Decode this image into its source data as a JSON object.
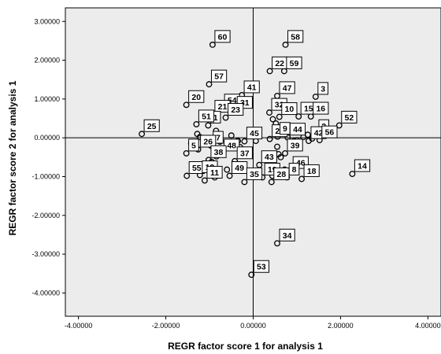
{
  "chart_data": {
    "type": "scatter",
    "title": "",
    "xlabel": "REGR factor score   1 for analysis 1",
    "ylabel": "REGR factor score   2 for analysis 1",
    "xlim": [
      -4.3,
      4.3
    ],
    "ylim": [
      -4.6,
      3.35
    ],
    "xticks": [
      -4,
      -2,
      0,
      2,
      4
    ],
    "yticks": [
      -4,
      -3,
      -2,
      -1,
      0,
      1,
      2,
      3
    ],
    "xtick_labels": [
      "-4.00000",
      "-2.00000",
      "0.00000",
      "2.00000",
      "4.00000"
    ],
    "ytick_labels": [
      "-4.00000",
      "-3.00000",
      "-2.00000",
      "-1.00000",
      "0.00000",
      "1.00000",
      "2.00000",
      "3.00000"
    ],
    "reference_lines": {
      "x": 0,
      "y": 0
    },
    "background": "#ececec",
    "point_color": "#000000",
    "points": [
      {
        "label": "60",
        "x": -0.93,
        "y": 2.4
      },
      {
        "label": "58",
        "x": 0.74,
        "y": 2.4
      },
      {
        "label": "22",
        "x": 0.38,
        "y": 1.72
      },
      {
        "label": "59",
        "x": 0.71,
        "y": 1.72
      },
      {
        "label": "57",
        "x": -1.01,
        "y": 1.38
      },
      {
        "label": "41",
        "x": -0.26,
        "y": 1.1
      },
      {
        "label": "47",
        "x": 0.55,
        "y": 1.08
      },
      {
        "label": "3",
        "x": 1.43,
        "y": 1.06
      },
      {
        "label": "20",
        "x": -1.53,
        "y": 0.85
      },
      {
        "label": "54",
        "x": -0.71,
        "y": 0.76
      },
      {
        "label": "32",
        "x": 0.37,
        "y": 0.65
      },
      {
        "label": "21",
        "x": -0.93,
        "y": 0.6
      },
      {
        "label": "31",
        "x": -0.42,
        "y": 0.7
      },
      {
        "label": "10",
        "x": 0.6,
        "y": 0.54
      },
      {
        "label": "15",
        "x": 1.04,
        "y": 0.55
      },
      {
        "label": "16",
        "x": 1.32,
        "y": 0.55
      },
      {
        "label": "23",
        "x": -0.63,
        "y": 0.52
      },
      {
        "label": "52",
        "x": 1.97,
        "y": 0.32
      },
      {
        "label": "1",
        "x": -1.03,
        "y": 0.32
      },
      {
        "label": "51",
        "x": -1.3,
        "y": 0.35
      },
      {
        "label": "2",
        "x": 1.45,
        "y": 0.1
      },
      {
        "label": "25",
        "x": -2.55,
        "y": 0.1
      },
      {
        "label": "24",
        "x": 0.38,
        "y": -0.03
      },
      {
        "label": "9",
        "x": 0.56,
        "y": 0.03
      },
      {
        "label": "44",
        "x": 0.79,
        "y": 0.01
      },
      {
        "label": "45",
        "x": -0.2,
        "y": -0.09
      },
      {
        "label": "42",
        "x": 1.27,
        "y": -0.08
      },
      {
        "label": "56",
        "x": 1.52,
        "y": -0.06
      },
      {
        "label": "7",
        "x": -0.97,
        "y": -0.2
      },
      {
        "label": "26",
        "x": -1.26,
        "y": -0.3
      },
      {
        "label": "5",
        "x": -1.53,
        "y": -0.4
      },
      {
        "label": "48",
        "x": -0.72,
        "y": -0.4
      },
      {
        "label": "39",
        "x": 0.73,
        "y": -0.4
      },
      {
        "label": "38",
        "x": -1.02,
        "y": -0.57
      },
      {
        "label": "37",
        "x": -0.42,
        "y": -0.6
      },
      {
        "label": "43",
        "x": 0.14,
        "y": -0.7
      },
      {
        "label": "14",
        "x": 2.27,
        "y": -0.93
      },
      {
        "label": "46",
        "x": 0.86,
        "y": -0.85
      },
      {
        "label": "55",
        "x": -1.52,
        "y": -0.98
      },
      {
        "label": "12",
        "x": -1.22,
        "y": -0.96
      },
      {
        "label": "49",
        "x": -0.54,
        "y": -0.98
      },
      {
        "label": "19",
        "x": 0.21,
        "y": -1.02
      },
      {
        "label": "8",
        "x": 0.77,
        "y": -1.02
      },
      {
        "label": "18",
        "x": 1.11,
        "y": -1.06
      },
      {
        "label": "11",
        "x": -1.11,
        "y": -1.1
      },
      {
        "label": "35",
        "x": -0.2,
        "y": -1.14
      },
      {
        "label": "28",
        "x": 0.42,
        "y": -1.14
      },
      {
        "label": "34",
        "x": 0.55,
        "y": -2.72
      },
      {
        "label": "53",
        "x": -0.04,
        "y": -3.53
      }
    ],
    "unlabeled_points": [
      {
        "x": -1.28,
        "y": 0.1
      },
      {
        "x": -1.42,
        "y": -0.14
      },
      {
        "x": -0.84,
        "y": -0.48
      },
      {
        "x": -0.95,
        "y": -0.62
      },
      {
        "x": -0.85,
        "y": 0.18
      },
      {
        "x": -1.22,
        "y": 0.02
      },
      {
        "x": -0.76,
        "y": -0.1
      },
      {
        "x": -0.5,
        "y": 0.06
      },
      {
        "x": -0.35,
        "y": -0.08
      },
      {
        "x": -0.3,
        "y": -0.24
      },
      {
        "x": 0.45,
        "y": 0.48
      },
      {
        "x": 0.52,
        "y": 0.37
      },
      {
        "x": 0.6,
        "y": 0.15
      },
      {
        "x": 0.06,
        "y": -0.08
      },
      {
        "x": 0.55,
        "y": -0.23
      },
      {
        "x": 0.58,
        "y": -0.42
      },
      {
        "x": 0.63,
        "y": -0.5
      },
      {
        "x": 1.0,
        "y": -0.06
      },
      {
        "x": 1.15,
        "y": 0.02
      },
      {
        "x": 1.25,
        "y": 0.08
      },
      {
        "x": 1.35,
        "y": -0.02
      },
      {
        "x": 0.35,
        "y": -0.77
      },
      {
        "x": 0.44,
        "y": -0.98
      },
      {
        "x": 0.72,
        "y": -0.82
      },
      {
        "x": 0.98,
        "y": -0.85
      },
      {
        "x": -0.6,
        "y": -0.82
      },
      {
        "x": -0.88,
        "y": -1.02
      },
      {
        "x": 0.94,
        "y": -0.08
      },
      {
        "x": 0.8,
        "y": 0.17
      }
    ]
  }
}
